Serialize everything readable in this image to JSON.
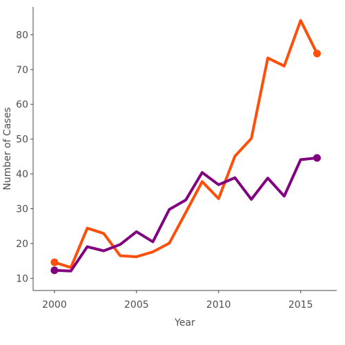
{
  "chart_data": {
    "type": "line",
    "title": "",
    "xlabel": "Year",
    "ylabel": "Number of Cases",
    "x": [
      2000,
      2001,
      2002,
      2003,
      2004,
      2005,
      2006,
      2007,
      2008,
      2009,
      2010,
      2011,
      2012,
      2013,
      2014,
      2015,
      2016
    ],
    "xlim": [
      1998.7,
      2017.2
    ],
    "ylim": [
      6.5,
      88
    ],
    "xticks": [
      2000,
      2005,
      2010,
      2015
    ],
    "yticks": [
      10,
      20,
      30,
      40,
      50,
      60,
      70,
      80
    ],
    "xtick_labels": [
      "2000",
      "2005",
      "2010",
      "2015"
    ],
    "ytick_labels": [
      "10",
      "20",
      "30",
      "40",
      "50",
      "60",
      "70",
      "80"
    ],
    "grid": false,
    "legend": "none",
    "series": [
      {
        "color": "#ff4f0a",
        "values": [
          14.6,
          13.1,
          24.4,
          22.9,
          16.5,
          16.2,
          17.6,
          20.1,
          28.9,
          37.8,
          32.9,
          45.1,
          50.2,
          73.3,
          71.0,
          84.1,
          74.6
        ],
        "end_marker": true
      },
      {
        "color": "#800080",
        "values": [
          12.3,
          12.1,
          19.1,
          17.9,
          19.7,
          23.4,
          20.5,
          29.8,
          32.5,
          40.4,
          36.9,
          38.9,
          32.7,
          38.8,
          33.6,
          44.1,
          44.6
        ],
        "end_marker": true
      }
    ]
  }
}
